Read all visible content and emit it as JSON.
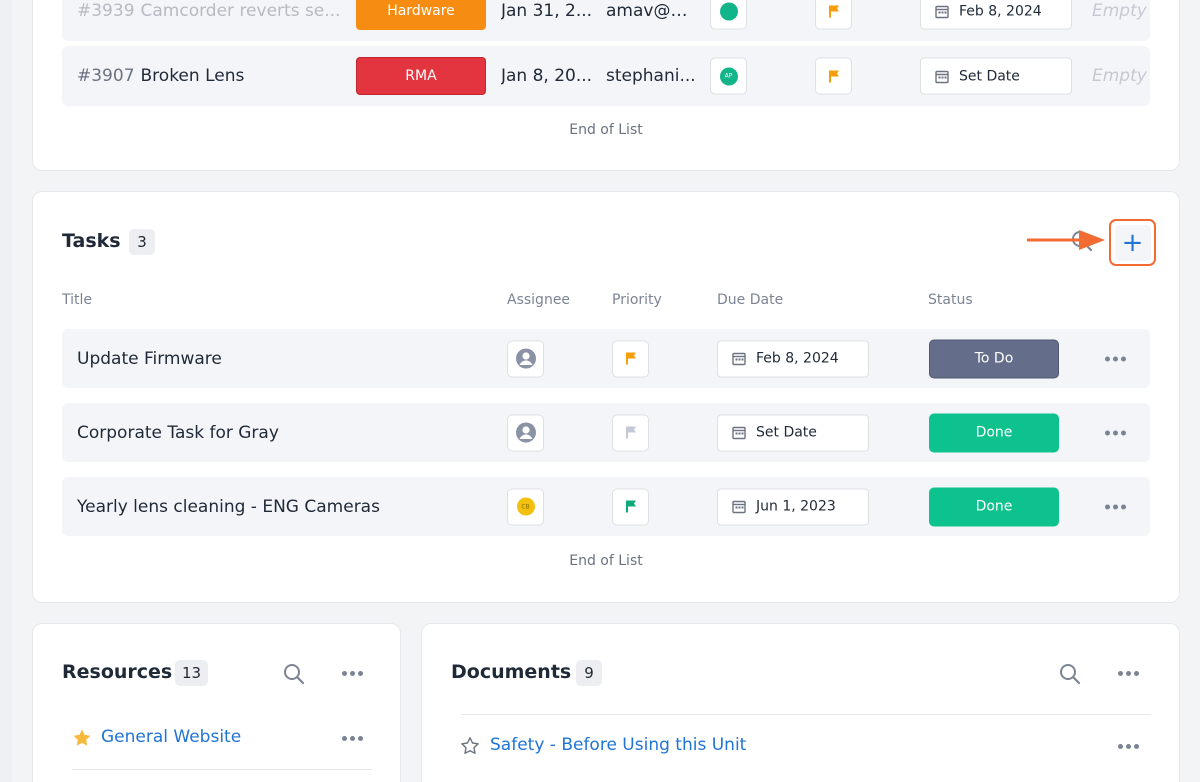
{
  "tickets": {
    "rows": [
      {
        "num": "#3939",
        "title": "Camcorder reverts se...",
        "type": "Hardware",
        "type_color": "#f78c12",
        "date": "Jan 31, 2...",
        "email": "amav@b...",
        "due": "Feb 8, 2024",
        "empty": "Empty"
      },
      {
        "num": "#3907",
        "title": "Broken Lens",
        "type": "RMA",
        "type_color": "#e3353f",
        "date": "Jan 8, 20...",
        "email": "stephani...",
        "assignee_initials": "AP",
        "due": "Set Date",
        "empty": "Empty"
      }
    ],
    "end_of_list": "End of List"
  },
  "tasks": {
    "title": "Tasks",
    "count": "3",
    "columns": {
      "title": "Title",
      "assignee": "Assignee",
      "priority": "Priority",
      "due_date": "Due Date",
      "status": "Status"
    },
    "add_label": "+",
    "rows": [
      {
        "title": "Update Firmware",
        "assignee": "user-placeholder-icon",
        "priority_color": "#f59e0b",
        "due": "Feb 8, 2024",
        "status": "To Do",
        "status_color": "#646e8a"
      },
      {
        "title": "Corporate Task for Gray",
        "assignee": "user-placeholder-icon",
        "priority_color": "#c5c9d6",
        "due": "Set Date",
        "status": "Done",
        "status_color": "#0dc28d"
      },
      {
        "title": "Yearly lens cleaning - ENG Cameras",
        "assignee_initials": "CB",
        "priority_color": "#0dab7a",
        "due": "Jun 1, 2023",
        "status": "Done",
        "status_color": "#0dc28d"
      }
    ],
    "end_of_list": "End of List"
  },
  "resources": {
    "title": "Resources",
    "count": "13",
    "items": [
      {
        "label": "General Website",
        "starred": true
      }
    ]
  },
  "documents": {
    "title": "Documents",
    "count": "9",
    "items": [
      {
        "label": "Safety - Before Using this Unit",
        "starred": false
      }
    ]
  },
  "colors": {
    "accent": "#1f74d6",
    "annotation": "#f26b33"
  }
}
